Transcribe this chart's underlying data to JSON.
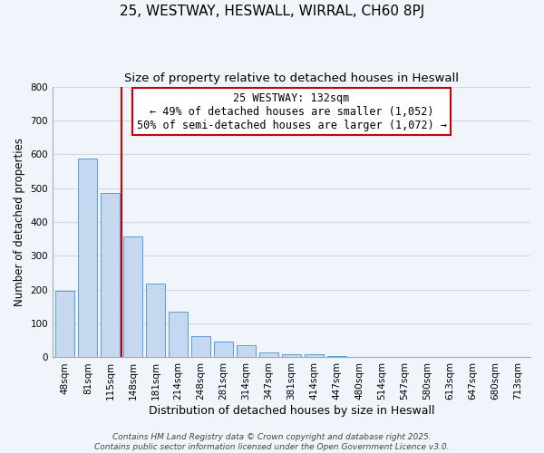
{
  "title": "25, WESTWAY, HESWALL, WIRRAL, CH60 8PJ",
  "subtitle": "Size of property relative to detached houses in Heswall",
  "xlabel": "Distribution of detached houses by size in Heswall",
  "ylabel": "Number of detached properties",
  "bar_labels": [
    "48sqm",
    "81sqm",
    "115sqm",
    "148sqm",
    "181sqm",
    "214sqm",
    "248sqm",
    "281sqm",
    "314sqm",
    "347sqm",
    "381sqm",
    "414sqm",
    "447sqm",
    "480sqm",
    "514sqm",
    "547sqm",
    "580sqm",
    "613sqm",
    "647sqm",
    "680sqm",
    "713sqm"
  ],
  "bar_values": [
    197,
    588,
    487,
    358,
    219,
    135,
    62,
    47,
    35,
    14,
    10,
    10,
    5,
    0,
    0,
    0,
    0,
    0,
    0,
    0,
    0
  ],
  "bar_color": "#c5d8f0",
  "bar_edge_color": "#5b9bd5",
  "vline_x": 2.5,
  "vline_color": "#cc0000",
  "ylim": [
    0,
    800
  ],
  "yticks": [
    0,
    100,
    200,
    300,
    400,
    500,
    600,
    700,
    800
  ],
  "annotation_title": "25 WESTWAY: 132sqm",
  "annotation_line1": "← 49% of detached houses are smaller (1,052)",
  "annotation_line2": "50% of semi-detached houses are larger (1,072) →",
  "annotation_box_color": "#ffffff",
  "annotation_box_edge": "#cc0000",
  "grid_color": "#d0d8e8",
  "background_color": "#f0f4fb",
  "footer1": "Contains HM Land Registry data © Crown copyright and database right 2025.",
  "footer2": "Contains public sector information licensed under the Open Government Licence v3.0.",
  "title_fontsize": 11,
  "subtitle_fontsize": 9.5,
  "xlabel_fontsize": 9,
  "ylabel_fontsize": 8.5,
  "tick_fontsize": 7.5,
  "annotation_fontsize": 8.5,
  "footer_fontsize": 6.5
}
